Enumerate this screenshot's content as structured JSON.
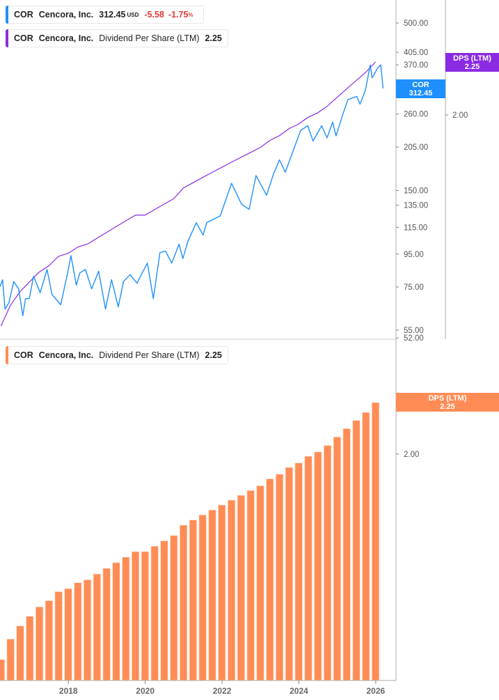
{
  "legend_price": {
    "ticker": "COR",
    "name": "Cencora, Inc.",
    "price": "312.45",
    "currency": "USD",
    "change": "-5.58",
    "change_pct": "-1.75",
    "pct_sign": "%"
  },
  "legend_dps_top": {
    "ticker": "COR",
    "name": "Cencora, Inc.",
    "metric": "Dividend Per Share (LTM)",
    "value": "2.25"
  },
  "legend_dps_bottom": {
    "ticker": "COR",
    "name": "Cencora, Inc.",
    "metric": "Dividend Per Share (LTM)",
    "value": "2.25"
  },
  "tags": {
    "dps_top": {
      "label": "DPS (LTM)",
      "value": "2.25"
    },
    "cor": {
      "label": "COR",
      "value": "312.45"
    },
    "dps_bottom": {
      "label": "DPS (LTM)",
      "value": "2.25"
    }
  },
  "colors": {
    "price": "#1e8fff",
    "dps_line": "#8a2be2",
    "dps_bar": "#ff8c55",
    "negative": "#e03a3a"
  },
  "chart_data": [
    {
      "type": "line",
      "scale": "log",
      "series": [
        {
          "name": "COR",
          "axis": "left",
          "points": [
            [
              "2016-03-20",
              75
            ],
            [
              "2016-04-15",
              79
            ],
            [
              "2016-05-08",
              64
            ],
            [
              "2016-06-15",
              67
            ],
            [
              "2016-07-30",
              78
            ],
            [
              "2016-09-15",
              74
            ],
            [
              "2016-10-25",
              61
            ],
            [
              "2016-11-20",
              69
            ],
            [
              "2016-12-25",
              69
            ],
            [
              "2017-02-05",
              81
            ],
            [
              "2017-04-08",
              72
            ],
            [
              "2017-06-12",
              85
            ],
            [
              "2017-07-30",
              71
            ],
            [
              "2017-10-20",
              66
            ],
            [
              "2017-12-25",
              83
            ],
            [
              "2018-01-25",
              94
            ],
            [
              "2018-03-18",
              76
            ],
            [
              "2018-04-20",
              83
            ],
            [
              "2018-06-12",
              85
            ],
            [
              "2018-08-10",
              74
            ],
            [
              "2018-10-15",
              84
            ],
            [
              "2018-12-20",
              64
            ],
            [
              "2019-02-15",
              79
            ],
            [
              "2019-04-20",
              65
            ],
            [
              "2019-06-08",
              78
            ],
            [
              "2019-08-10",
              82
            ],
            [
              "2019-10-15",
              77
            ],
            [
              "2019-11-25",
              82
            ],
            [
              "2020-01-22",
              89
            ],
            [
              "2020-03-18",
              69
            ],
            [
              "2020-05-20",
              96
            ],
            [
              "2020-07-12",
              97
            ],
            [
              "2020-09-10",
              89
            ],
            [
              "2020-11-18",
              102
            ],
            [
              "2020-12-25",
              92
            ],
            [
              "2021-02-10",
              104
            ],
            [
              "2021-05-01",
              119
            ],
            [
              "2021-07-05",
              109
            ],
            [
              "2021-08-08",
              119
            ],
            [
              "2021-12-15",
              125
            ],
            [
              "2022-04-01",
              158
            ],
            [
              "2022-07-05",
              136
            ],
            [
              "2022-09-15",
              131
            ],
            [
              "2022-11-20",
              167
            ],
            [
              "2023-02-28",
              145
            ],
            [
              "2023-05-05",
              169
            ],
            [
              "2023-07-01",
              187
            ],
            [
              "2023-08-25",
              171
            ],
            [
              "2023-10-30",
              196
            ],
            [
              "2024-01-18",
              231
            ],
            [
              "2024-03-25",
              239
            ],
            [
              "2024-05-15",
              214
            ],
            [
              "2024-08-05",
              239
            ],
            [
              "2024-09-25",
              219
            ],
            [
              "2024-11-18",
              245
            ],
            [
              "2024-12-20",
              222
            ],
            [
              "2025-02-25",
              261
            ],
            [
              "2025-04-12",
              288
            ],
            [
              "2025-07-05",
              295
            ],
            [
              "2025-08-05",
              279
            ],
            [
              "2025-09-25",
              308
            ],
            [
              "2025-11-10",
              370
            ],
            [
              "2025-11-28",
              337
            ],
            [
              "2026-01-22",
              363
            ],
            [
              "2026-02-18",
              370
            ],
            [
              "2026-03-12",
              312.45
            ]
          ]
        },
        {
          "name": "DPS (LTM)",
          "axis": "right",
          "use_bar_values": true
        }
      ],
      "y_ticks_left": [
        "500.00",
        "405.00",
        "370.00",
        "260.00",
        "205.00",
        "150.00",
        "135.00",
        "115.00",
        "95.00",
        "75.00",
        "55.00",
        "52.00"
      ],
      "y_ticks_right": [
        "2.00"
      ]
    },
    {
      "type": "bar",
      "scale": "log",
      "start_quarter": "2016-03-31",
      "values": [
        1.25,
        1.31,
        1.35,
        1.38,
        1.41,
        1.43,
        1.46,
        1.47,
        1.49,
        1.5,
        1.52,
        1.54,
        1.56,
        1.58,
        1.6,
        1.6,
        1.62,
        1.64,
        1.66,
        1.7,
        1.72,
        1.74,
        1.76,
        1.78,
        1.8,
        1.82,
        1.84,
        1.86,
        1.89,
        1.91,
        1.94,
        1.96,
        1.99,
        2.01,
        2.04,
        2.08,
        2.12,
        2.16,
        2.2,
        2.25
      ],
      "y_ticks": [
        "2.00"
      ],
      "x_ticks": [
        "2018",
        "2020",
        "2022",
        "2024",
        "2026"
      ]
    }
  ]
}
